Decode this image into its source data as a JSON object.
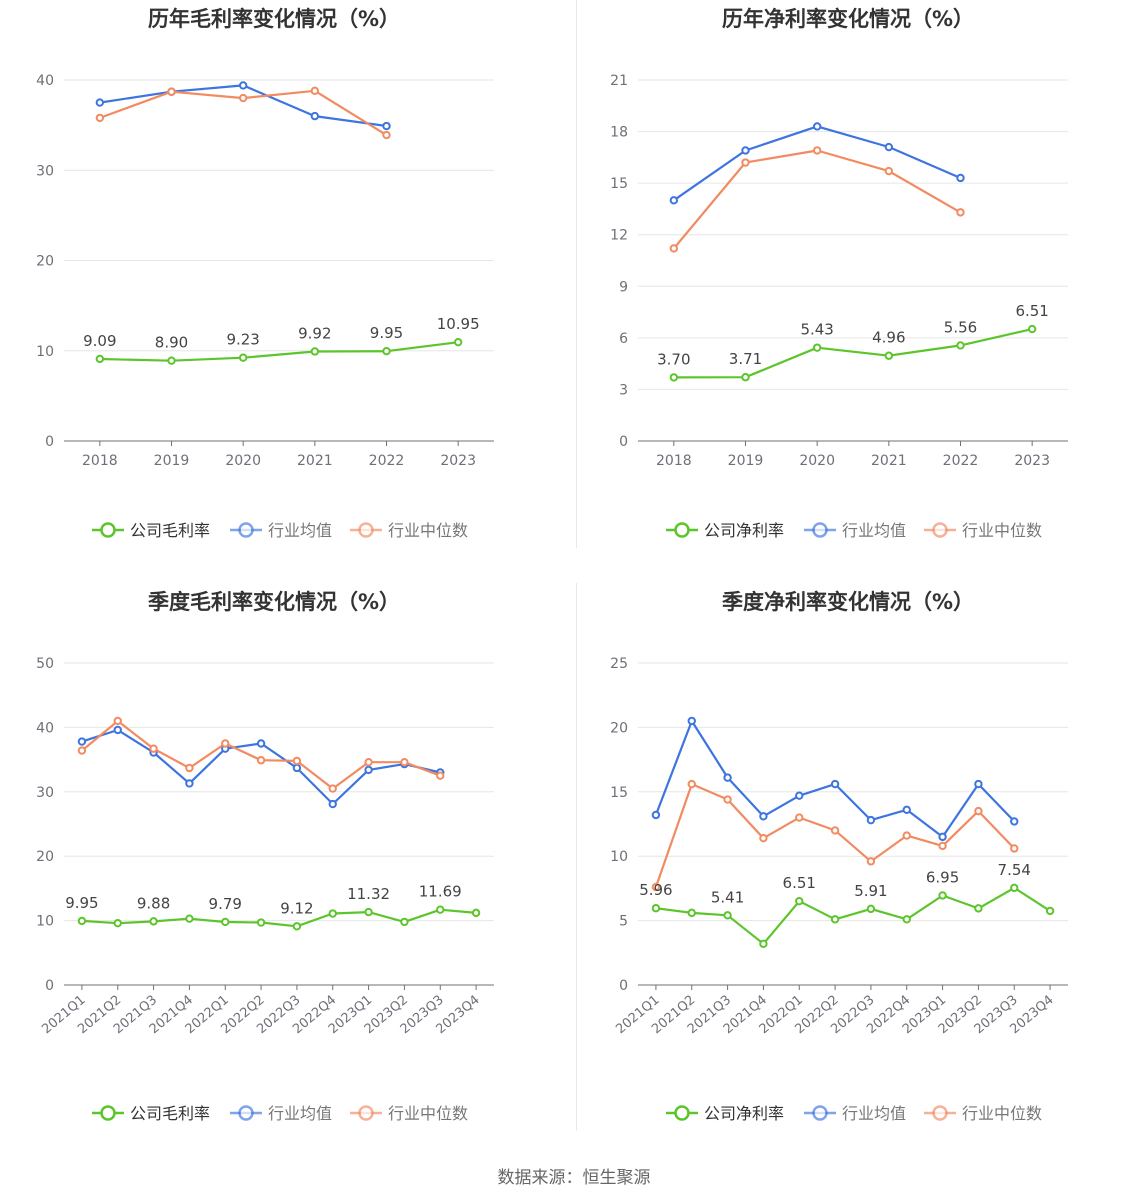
{
  "source_text": "数据来源：恒生聚源",
  "colors": {
    "company": "#5cc52b",
    "avg": "#3d74e0",
    "median": "#f28a62"
  },
  "chart_data": [
    {
      "type": "line",
      "title": "历年毛利率变化情况（%）",
      "categories": [
        "2018",
        "2019",
        "2020",
        "2021",
        "2022",
        "2023"
      ],
      "ylim": [
        0,
        40
      ],
      "yticks": [
        0,
        10,
        20,
        30,
        40
      ],
      "grid": true,
      "legend": "bottom",
      "series": [
        {
          "name": "公司毛利率",
          "key": "company",
          "values": [
            9.09,
            8.9,
            9.23,
            9.92,
            9.95,
            10.95
          ],
          "labels": [
            "9.09",
            "8.90",
            "9.23",
            "9.92",
            "9.95",
            "10.95"
          ]
        },
        {
          "name": "行业均值",
          "key": "avg",
          "values": [
            37.5,
            38.7,
            39.4,
            36.0,
            34.9,
            null
          ]
        },
        {
          "name": "行业中位数",
          "key": "median",
          "values": [
            35.8,
            38.7,
            38.0,
            38.8,
            33.9,
            null
          ]
        }
      ]
    },
    {
      "type": "line",
      "title": "历年净利率变化情况（%）",
      "categories": [
        "2018",
        "2019",
        "2020",
        "2021",
        "2022",
        "2023"
      ],
      "ylim": [
        0,
        21
      ],
      "yticks": [
        0,
        3,
        6,
        9,
        12,
        15,
        18,
        21
      ],
      "grid": true,
      "legend": "bottom",
      "series": [
        {
          "name": "公司净利率",
          "key": "company",
          "values": [
            3.7,
            3.71,
            5.43,
            4.96,
            5.56,
            6.51
          ],
          "labels": [
            "3.70",
            "3.71",
            "5.43",
            "4.96",
            "5.56",
            "6.51"
          ]
        },
        {
          "name": "行业均值",
          "key": "avg",
          "values": [
            14.0,
            16.9,
            18.3,
            17.1,
            15.3,
            null
          ]
        },
        {
          "name": "行业中位数",
          "key": "median",
          "values": [
            11.2,
            16.2,
            16.9,
            15.7,
            13.3,
            null
          ]
        }
      ]
    },
    {
      "type": "line",
      "title": "季度毛利率变化情况（%）",
      "categories": [
        "2021Q1",
        "2021Q2",
        "2021Q3",
        "2021Q4",
        "2022Q1",
        "2022Q2",
        "2022Q3",
        "2022Q4",
        "2023Q1",
        "2023Q2",
        "2023Q3",
        "2023Q4"
      ],
      "ylim": [
        0,
        50
      ],
      "yticks": [
        0,
        10,
        20,
        30,
        40,
        50
      ],
      "grid": true,
      "legend": "bottom",
      "series": [
        {
          "name": "公司毛利率",
          "key": "company",
          "values": [
            9.95,
            9.6,
            9.88,
            10.3,
            9.79,
            9.7,
            9.12,
            11.1,
            11.32,
            9.8,
            11.69,
            11.2
          ],
          "labels": [
            "9.95",
            "",
            "9.88",
            "",
            "9.79",
            "",
            "9.12",
            "",
            "11.32",
            "",
            "11.69",
            ""
          ]
        },
        {
          "name": "行业均值",
          "key": "avg",
          "values": [
            37.8,
            39.6,
            36.1,
            31.3,
            36.7,
            37.5,
            33.7,
            28.1,
            33.4,
            34.3,
            33.0,
            null
          ]
        },
        {
          "name": "行业中位数",
          "key": "median",
          "values": [
            36.4,
            41.0,
            36.7,
            33.7,
            37.5,
            34.9,
            34.8,
            30.5,
            34.6,
            34.6,
            32.5,
            null
          ]
        }
      ]
    },
    {
      "type": "line",
      "title": "季度净利率变化情况（%）",
      "categories": [
        "2021Q1",
        "2021Q2",
        "2021Q3",
        "2021Q4",
        "2022Q1",
        "2022Q2",
        "2022Q3",
        "2022Q4",
        "2023Q1",
        "2023Q2",
        "2023Q3",
        "2023Q4"
      ],
      "ylim": [
        0,
        25
      ],
      "yticks": [
        0,
        5,
        10,
        15,
        20,
        25
      ],
      "grid": true,
      "legend": "bottom",
      "series": [
        {
          "name": "公司净利率",
          "key": "company",
          "values": [
            5.96,
            5.6,
            5.41,
            3.2,
            6.51,
            5.1,
            5.91,
            5.1,
            6.95,
            5.95,
            7.54,
            5.75
          ],
          "labels": [
            "5.96",
            "",
            "5.41",
            "",
            "6.51",
            "",
            "5.91",
            "",
            "6.95",
            "",
            "7.54",
            ""
          ]
        },
        {
          "name": "行业均值",
          "key": "avg",
          "values": [
            13.2,
            20.5,
            16.1,
            13.1,
            14.7,
            15.6,
            12.8,
            13.6,
            11.5,
            15.6,
            12.7,
            null
          ]
        },
        {
          "name": "行业中位数",
          "key": "median",
          "values": [
            7.6,
            15.6,
            14.4,
            11.4,
            13.0,
            12.0,
            9.6,
            11.6,
            10.8,
            13.5,
            10.6,
            null
          ]
        }
      ]
    }
  ]
}
